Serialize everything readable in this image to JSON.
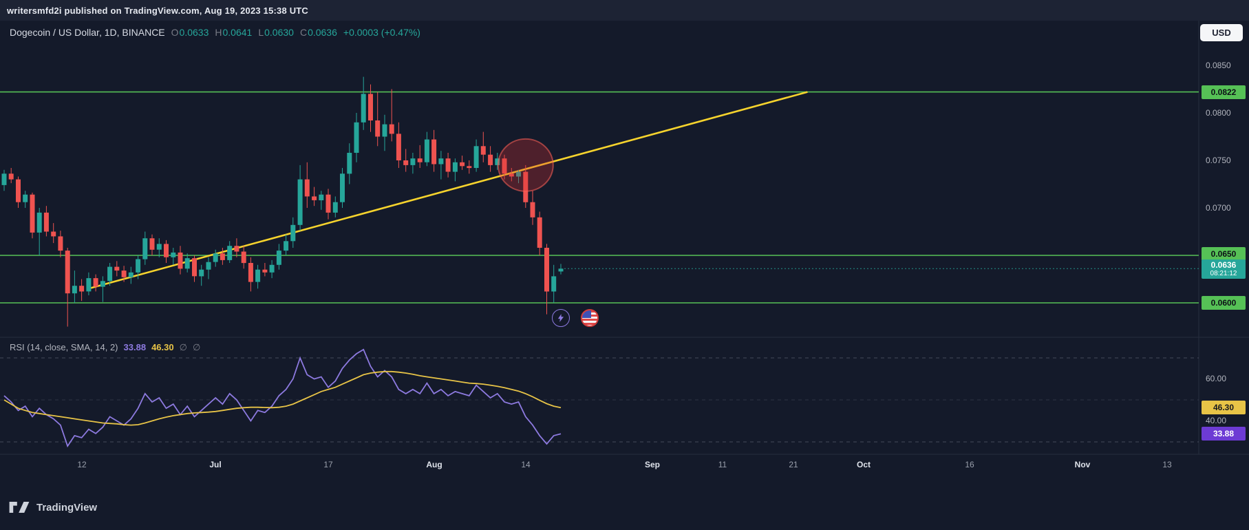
{
  "attribution": {
    "text": "writersmfd2i published on TradingView.com, Aug 19, 2023 15:38 UTC"
  },
  "currency_button": {
    "label": "USD"
  },
  "header": {
    "symbol": "Dogecoin / US Dollar, 1D, BINANCE",
    "o_label": "O",
    "o_value": "0.0633",
    "h_label": "H",
    "h_value": "0.0641",
    "l_label": "L",
    "l_value": "0.0630",
    "c_label": "C",
    "c_value": "0.0636",
    "change": "+0.0003 (+0.47%)"
  },
  "footer": {
    "brand": "TradingView"
  },
  "chart_data": {
    "type": "candlestick",
    "title": "Dogecoin / US Dollar, 1D, BINANCE",
    "ylabel": "Price (USD)",
    "y_axis_range": [
      0.0575,
      0.0875
    ],
    "colors": {
      "up": "#26a69a",
      "down": "#ef5350",
      "level_line": "#56c156",
      "trendline": "#f6d32d"
    },
    "price_axis": {
      "ticks": [
        {
          "label": "0.0850",
          "value": 0.085
        },
        {
          "label": "0.0800",
          "value": 0.08
        },
        {
          "label": "0.0750",
          "value": 0.075
        },
        {
          "label": "0.0700",
          "value": 0.07
        }
      ]
    },
    "levels": [
      {
        "label": "0.0822",
        "value": 0.0822,
        "color": "#56c156"
      },
      {
        "label": "0.0650",
        "value": 0.065,
        "color": "#56c156"
      },
      {
        "label": "0.0600",
        "value": 0.06,
        "color": "#56c156"
      }
    ],
    "current_price": {
      "label": "0.0636",
      "value": 0.0636,
      "countdown": "08:21:12",
      "color": "#26a69a"
    },
    "trendline": {
      "from_index": 12,
      "from_price": 0.0615,
      "to_index": 114,
      "to_price": 0.0822,
      "color": "#f6d32d"
    },
    "highlight": {
      "index": 74,
      "price": 0.0745,
      "color": "#e53935"
    },
    "time_ticks": [
      {
        "label": "12",
        "index": 11
      },
      {
        "label": "Jul",
        "index": 30,
        "major": true
      },
      {
        "label": "17",
        "index": 46
      },
      {
        "label": "Aug",
        "index": 61,
        "major": true
      },
      {
        "label": "14",
        "index": 74
      },
      {
        "label": "Sep",
        "index": 92,
        "major": true
      },
      {
        "label": "11",
        "index": 102
      },
      {
        "label": "21",
        "index": 112
      },
      {
        "label": "Oct",
        "index": 122,
        "major": true
      },
      {
        "label": "16",
        "index": 137
      },
      {
        "label": "Nov",
        "index": 153,
        "major": true
      },
      {
        "label": "13",
        "index": 165
      }
    ],
    "candles": [
      [
        0.0724,
        0.074,
        0.0718,
        0.0736
      ],
      [
        0.0736,
        0.0742,
        0.0726,
        0.073
      ],
      [
        0.073,
        0.0733,
        0.07,
        0.0706
      ],
      [
        0.0706,
        0.0718,
        0.07,
        0.0714
      ],
      [
        0.0714,
        0.0716,
        0.0668,
        0.0674
      ],
      [
        0.0674,
        0.07,
        0.065,
        0.0695
      ],
      [
        0.0695,
        0.0702,
        0.067,
        0.0675
      ],
      [
        0.0675,
        0.0684,
        0.0663,
        0.067
      ],
      [
        0.067,
        0.0676,
        0.0648,
        0.0655
      ],
      [
        0.0655,
        0.0658,
        0.0575,
        0.061
      ],
      [
        0.061,
        0.0634,
        0.06,
        0.0618
      ],
      [
        0.0618,
        0.0625,
        0.0602,
        0.0612
      ],
      [
        0.0612,
        0.0632,
        0.0608,
        0.0626
      ],
      [
        0.0626,
        0.063,
        0.0612,
        0.0617
      ],
      [
        0.0617,
        0.0628,
        0.0601,
        0.0623
      ],
      [
        0.0623,
        0.0642,
        0.0618,
        0.0638
      ],
      [
        0.0638,
        0.0644,
        0.0628,
        0.0634
      ],
      [
        0.0634,
        0.0639,
        0.0622,
        0.0627
      ],
      [
        0.0627,
        0.0638,
        0.062,
        0.0632
      ],
      [
        0.0632,
        0.065,
        0.0625,
        0.0646
      ],
      [
        0.0646,
        0.0675,
        0.064,
        0.0668
      ],
      [
        0.0668,
        0.0672,
        0.065,
        0.0656
      ],
      [
        0.0656,
        0.0668,
        0.0648,
        0.0662
      ],
      [
        0.0662,
        0.0666,
        0.0642,
        0.0648
      ],
      [
        0.0648,
        0.0658,
        0.064,
        0.0653
      ],
      [
        0.0653,
        0.066,
        0.063,
        0.0636
      ],
      [
        0.0636,
        0.0652,
        0.0632,
        0.0647
      ],
      [
        0.0647,
        0.065,
        0.0622,
        0.0628
      ],
      [
        0.0628,
        0.064,
        0.0618,
        0.0635
      ],
      [
        0.0635,
        0.0648,
        0.0625,
        0.0643
      ],
      [
        0.0643,
        0.0656,
        0.0638,
        0.0652
      ],
      [
        0.0652,
        0.0658,
        0.064,
        0.0645
      ],
      [
        0.0645,
        0.0665,
        0.0642,
        0.066
      ],
      [
        0.066,
        0.0668,
        0.0648,
        0.0654
      ],
      [
        0.0654,
        0.066,
        0.0636,
        0.0642
      ],
      [
        0.0642,
        0.0648,
        0.0612,
        0.0622
      ],
      [
        0.0622,
        0.064,
        0.0615,
        0.0635
      ],
      [
        0.0635,
        0.0642,
        0.0628,
        0.0632
      ],
      [
        0.0632,
        0.0645,
        0.0626,
        0.064
      ],
      [
        0.064,
        0.0662,
        0.0635,
        0.0655
      ],
      [
        0.0655,
        0.0672,
        0.065,
        0.0665
      ],
      [
        0.0665,
        0.069,
        0.0658,
        0.0682
      ],
      [
        0.0682,
        0.0745,
        0.0676,
        0.073
      ],
      [
        0.073,
        0.0748,
        0.07,
        0.0712
      ],
      [
        0.0712,
        0.0722,
        0.0702,
        0.0708
      ],
      [
        0.0708,
        0.0718,
        0.0698,
        0.0714
      ],
      [
        0.0714,
        0.072,
        0.0688,
        0.0695
      ],
      [
        0.0695,
        0.0712,
        0.069,
        0.0706
      ],
      [
        0.0706,
        0.0742,
        0.07,
        0.0736
      ],
      [
        0.0736,
        0.0768,
        0.0725,
        0.0758
      ],
      [
        0.0758,
        0.08,
        0.0748,
        0.079
      ],
      [
        0.079,
        0.0838,
        0.0782,
        0.082
      ],
      [
        0.082,
        0.083,
        0.078,
        0.0792
      ],
      [
        0.0792,
        0.0822,
        0.0765,
        0.0775
      ],
      [
        0.0775,
        0.0798,
        0.076,
        0.0788
      ],
      [
        0.0788,
        0.0825,
        0.077,
        0.0778
      ],
      [
        0.0778,
        0.079,
        0.0742,
        0.075
      ],
      [
        0.075,
        0.0762,
        0.0738,
        0.0745
      ],
      [
        0.0745,
        0.0758,
        0.0736,
        0.0752
      ],
      [
        0.0752,
        0.0766,
        0.0742,
        0.0748
      ],
      [
        0.0748,
        0.078,
        0.0744,
        0.0772
      ],
      [
        0.0772,
        0.0782,
        0.0738,
        0.0746
      ],
      [
        0.0746,
        0.076,
        0.073,
        0.0752
      ],
      [
        0.0752,
        0.0758,
        0.0732,
        0.0738
      ],
      [
        0.0738,
        0.0752,
        0.0728,
        0.0748
      ],
      [
        0.0748,
        0.0755,
        0.074,
        0.0744
      ],
      [
        0.0744,
        0.075,
        0.0736,
        0.0742
      ],
      [
        0.0742,
        0.0772,
        0.0738,
        0.0765
      ],
      [
        0.0765,
        0.078,
        0.0748,
        0.0756
      ],
      [
        0.0756,
        0.0765,
        0.0738,
        0.0745
      ],
      [
        0.0745,
        0.0758,
        0.074,
        0.0752
      ],
      [
        0.0752,
        0.0756,
        0.073,
        0.0736
      ],
      [
        0.0736,
        0.0742,
        0.0728,
        0.0733
      ],
      [
        0.0733,
        0.074,
        0.0726,
        0.0738
      ],
      [
        0.0738,
        0.0745,
        0.07,
        0.0706
      ],
      [
        0.0706,
        0.0718,
        0.0682,
        0.069
      ],
      [
        0.069,
        0.0696,
        0.065,
        0.0658
      ],
      [
        0.0658,
        0.0662,
        0.0588,
        0.0612
      ],
      [
        0.0612,
        0.064,
        0.06,
        0.0628
      ],
      [
        0.0633,
        0.0641,
        0.063,
        0.0636
      ]
    ],
    "rsi": {
      "legend_title": "RSI (14, close, SMA, 14, 2)",
      "rsi_value": "33.88",
      "sma_value": "46.30",
      "hidden_band_1": "∅",
      "hidden_band_2": "∅",
      "rsi_color": "#8d7ae0",
      "sma_color": "#e8c447",
      "dashed_levels": [
        70,
        50,
        30
      ],
      "axis_ticks": [
        {
          "label": "60.00",
          "value": 60
        },
        {
          "label": "40.00",
          "value": 40
        }
      ],
      "badges": [
        {
          "label": "46.30",
          "value": 46.3,
          "bg": "#e8c447"
        },
        {
          "label": "33.88",
          "value": 33.88,
          "bg": "#6d3bd4"
        }
      ],
      "values": [
        52,
        49,
        45,
        47,
        42,
        46,
        43,
        41,
        38,
        28,
        33,
        32,
        36,
        34,
        37,
        42,
        40,
        38,
        41,
        46,
        53,
        49,
        51,
        46,
        48,
        43,
        47,
        42,
        45,
        48,
        51,
        48,
        53,
        50,
        45,
        40,
        45,
        44,
        47,
        52,
        55,
        60,
        70,
        62,
        60,
        61,
        56,
        59,
        65,
        69,
        72,
        74,
        66,
        61,
        64,
        61,
        55,
        53,
        55,
        53,
        58,
        53,
        55,
        52,
        54,
        53,
        52,
        57,
        54,
        51,
        53,
        49,
        48,
        49,
        42,
        38,
        33,
        29,
        33,
        33.88
      ],
      "sma": [
        50,
        48,
        46,
        45,
        44,
        43.5,
        43,
        42.5,
        42,
        41.5,
        41,
        40.5,
        40,
        39.5,
        39,
        38.8,
        38.6,
        38.2,
        38,
        38.2,
        39,
        40,
        41,
        41.8,
        42.5,
        43,
        43.5,
        43.8,
        44,
        44.2,
        44.5,
        45,
        45.5,
        46,
        46.3,
        46.5,
        46.5,
        46.4,
        46.3,
        46.5,
        47,
        48,
        49.5,
        51,
        52.5,
        54,
        55,
        56,
        57.5,
        59,
        60.5,
        62,
        62.8,
        63.2,
        63.5,
        63.5,
        63.2,
        62.8,
        62.2,
        61.5,
        61,
        60.5,
        60,
        59.5,
        59,
        58.5,
        58,
        57.8,
        57.5,
        57,
        56.5,
        55.8,
        55,
        54.2,
        53,
        51.5,
        49.8,
        48.2,
        47,
        46.3
      ]
    }
  }
}
